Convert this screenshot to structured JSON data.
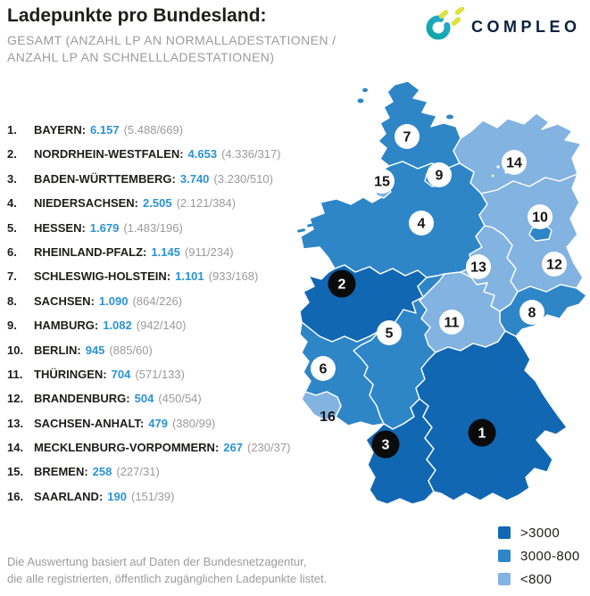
{
  "header": {
    "title": "Ladepunkte pro Bundesland:",
    "subtitle1": "GESAMT (ANZAHL LP AN NORMALLADESTATIONEN /",
    "subtitle2": "ANZAHL LP AN SCHNELLLADESTATIONEN)"
  },
  "logo": {
    "text": "COMPLEO"
  },
  "palette": {
    "text_dark": "#1d1d1b",
    "text_gray": "#9b9b9b",
    "value_blue": "#2b93d4",
    "logo_navy": "#0a2240"
  },
  "list": {
    "items": [
      {
        "rank": "1.",
        "name": "BAYERN:",
        "total": "6.157",
        "detail": "(5.488/669)"
      },
      {
        "rank": "2.",
        "name": "NORDRHEIN-WESTFALEN:",
        "total": "4.653",
        "detail": "(4.336/317)"
      },
      {
        "rank": "3.",
        "name": "BADEN-WÜRTTEMBERG:",
        "total": "3.740",
        "detail": "(3.230/510)"
      },
      {
        "rank": "4.",
        "name": "NIEDERSACHSEN:",
        "total": "2.505",
        "detail": "(2.121/384)"
      },
      {
        "rank": "5.",
        "name": "HESSEN:",
        "total": "1.679",
        "detail": "(1.483/196)"
      },
      {
        "rank": "6.",
        "name": "RHEINLAND-PFALZ:",
        "total": "1.145",
        "detail": "(911/234)"
      },
      {
        "rank": "7.",
        "name": "SCHLESWIG-HOLSTEIN:",
        "total": "1.101",
        "detail": "(933/168)"
      },
      {
        "rank": "8.",
        "name": "SACHSEN:",
        "total": "1.090",
        "detail": "(864/226)"
      },
      {
        "rank": "9.",
        "name": "HAMBURG:",
        "total": "1.082",
        "detail": "(942/140)"
      },
      {
        "rank": "10.",
        "name": "BERLIN:",
        "total": "945",
        "detail": "(885/60)"
      },
      {
        "rank": "11.",
        "name": "THÜRINGEN:",
        "total": "704",
        "detail": "(571/133)"
      },
      {
        "rank": "12.",
        "name": "BRANDENBURG:",
        "total": "504",
        "detail": "(450/54)"
      },
      {
        "rank": "13.",
        "name": "SACHSEN-ANHALT:",
        "total": "479",
        "detail": "(380/99)"
      },
      {
        "rank": "14.",
        "name": "MECKLENBURG-VORPOMMERN:",
        "total": "267",
        "detail": "(230/37)"
      },
      {
        "rank": "15.",
        "name": "BREMEN:",
        "total": "258",
        "detail": "(227/31)"
      },
      {
        "rank": "16.",
        "name": "SAARLAND:",
        "total": "190",
        "detail": "(151/39)"
      }
    ]
  },
  "map": {
    "markers": [
      {
        "label": "1",
        "style": "black"
      },
      {
        "label": "2",
        "style": "black"
      },
      {
        "label": "3",
        "style": "black"
      },
      {
        "label": "4",
        "style": "white"
      },
      {
        "label": "5",
        "style": "white"
      },
      {
        "label": "6",
        "style": "white"
      },
      {
        "label": "7",
        "style": "white"
      },
      {
        "label": "8",
        "style": "white"
      },
      {
        "label": "9",
        "style": "white"
      },
      {
        "label": "10",
        "style": "white"
      },
      {
        "label": "11",
        "style": "white"
      },
      {
        "label": "12",
        "style": "white"
      },
      {
        "label": "13",
        "style": "white"
      },
      {
        "label": "14",
        "style": "white"
      },
      {
        "label": "15",
        "style": "white"
      },
      {
        "label": "16",
        "style": "plain"
      }
    ]
  },
  "legend": {
    "items": [
      {
        "label": ">3000",
        "color": "#1167b2"
      },
      {
        "label": "3000-800",
        "color": "#2e86c7"
      },
      {
        "label": "<800",
        "color": "#82b3e1"
      }
    ]
  },
  "footnote": {
    "line1": "Die Auswertung basiert auf Daten der Bundesnetzagentur,",
    "line2": "die alle registrierten, öffentlich zugänglichen Ladepunkte listet."
  }
}
